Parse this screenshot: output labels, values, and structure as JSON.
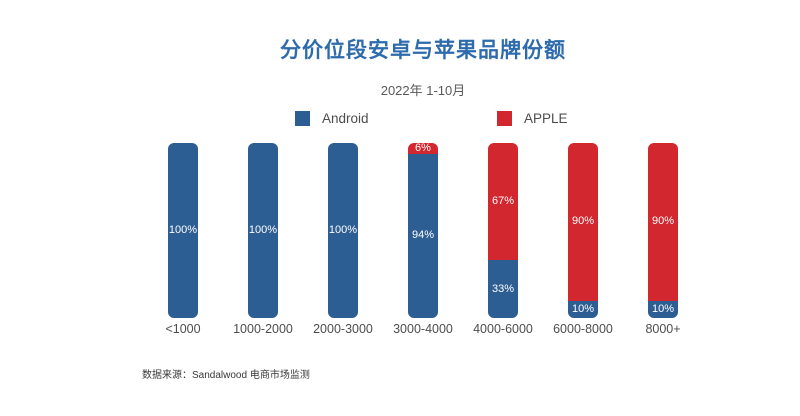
{
  "chart_data": {
    "type": "bar",
    "stacked": true,
    "orientation": "vertical",
    "unit": "%",
    "title": "分价位段安卓与苹果品牌份额",
    "subtitle": "2022年 1-10月",
    "categories": [
      "<1000",
      "1000-2000",
      "2000-3000",
      "3000-4000",
      "4000-6000",
      "6000-8000",
      "8000+"
    ],
    "series": [
      {
        "name": "Android",
        "color": "#2d5e93",
        "values": [
          100,
          100,
          100,
          94,
          33,
          10,
          10
        ]
      },
      {
        "name": "APPLE",
        "color": "#d2272f",
        "values": [
          0,
          0,
          0,
          6,
          67,
          90,
          90
        ]
      }
    ],
    "data_labels": "shown inside segments as percent, hidden when value is 0",
    "ylim": [
      0,
      100
    ],
    "grid": false,
    "legend_position": "top-center",
    "source_note": "数据来源：Sandalwood 电商市场监测"
  },
  "colors": {
    "title": "#2e6bad",
    "subtitle": "#595959",
    "axis_labels": "#4d4d4d",
    "segment_label": "#ffffff",
    "background": "#ffffff"
  }
}
